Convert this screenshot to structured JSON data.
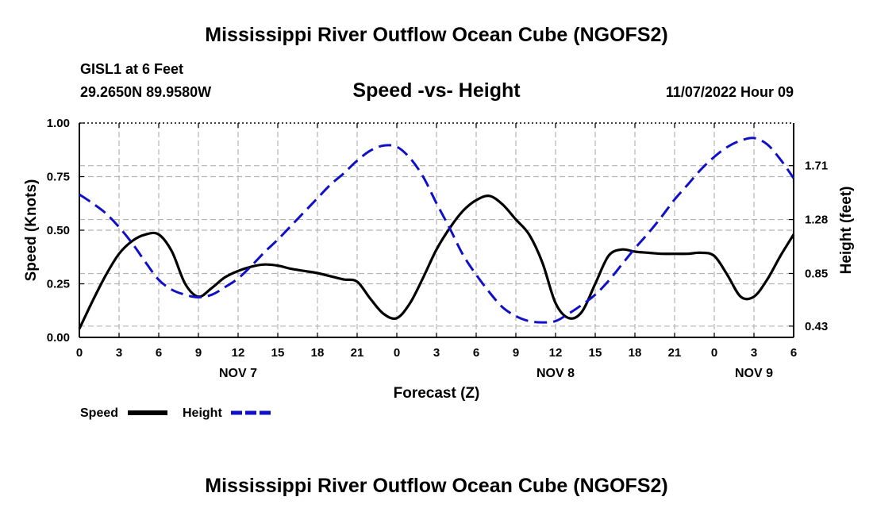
{
  "page": {
    "title": "Mississippi River Outflow Ocean Cube (NGOFS2)",
    "bottom_title": "Mississippi River Outflow Ocean Cube (NGOFS2)",
    "station": "GISL1 at 6 Feet",
    "coords": "29.2650N  89.9580W",
    "chart_title": "Speed -vs- Height",
    "datetime": "11/07/2022 Hour 09"
  },
  "chart_data": {
    "type": "line",
    "title": "Speed -vs- Height",
    "xlabel": "Forecast (Z)",
    "ylabel": "Speed (Knots)",
    "y2label": "Height (feet)",
    "x_unit": "hours since Nov 7 00Z",
    "xlim": [
      0,
      54
    ],
    "ylim": [
      0,
      1
    ],
    "y2lim": [
      0.34,
      2.05
    ],
    "x_tick_values": [
      0,
      3,
      6,
      9,
      12,
      15,
      18,
      21,
      24,
      27,
      30,
      33,
      36,
      39,
      42,
      45,
      48,
      51,
      54
    ],
    "x_tick_labels": [
      "0",
      "3",
      "6",
      "9",
      "12",
      "15",
      "18",
      "21",
      "0",
      "3",
      "6",
      "9",
      "12",
      "15",
      "18",
      "21",
      "0",
      "3",
      "6"
    ],
    "day_labels": [
      {
        "x": 12,
        "label": "NOV 7"
      },
      {
        "x": 36,
        "label": "NOV 8"
      },
      {
        "x": 51,
        "label": "NOV 9"
      }
    ],
    "y_ticks": [
      {
        "v": 0,
        "label": "0.00"
      },
      {
        "v": 0.25,
        "label": "0.25"
      },
      {
        "v": 0.5,
        "label": "0.50"
      },
      {
        "v": 0.75,
        "label": "0.75"
      },
      {
        "v": 1.0,
        "label": "1.00"
      }
    ],
    "y2_ticks": [
      {
        "v": 0.43,
        "label": "0.43"
      },
      {
        "v": 0.85,
        "label": "0.85"
      },
      {
        "v": 1.28,
        "label": "1.28"
      },
      {
        "v": 1.71,
        "label": "1.71"
      }
    ],
    "grid": true,
    "legend_position": "bottom-left",
    "series": [
      {
        "name": "Speed",
        "axis": "left",
        "color": "#000000",
        "style": "solid",
        "x": [
          0,
          1,
          2,
          3,
          4,
          5,
          6,
          7,
          8,
          9,
          10,
          11,
          12,
          13,
          14,
          15,
          16,
          17,
          18,
          19,
          20,
          21,
          22,
          23,
          24,
          25,
          26,
          27,
          28,
          29,
          30,
          31,
          32,
          33,
          34,
          35,
          36,
          37,
          38,
          39,
          40,
          41,
          42,
          43,
          44,
          45,
          46,
          47,
          48,
          49,
          50,
          51,
          52,
          53,
          54
        ],
        "values": [
          0.04,
          0.17,
          0.29,
          0.39,
          0.45,
          0.48,
          0.48,
          0.4,
          0.25,
          0.19,
          0.23,
          0.28,
          0.31,
          0.33,
          0.34,
          0.335,
          0.32,
          0.31,
          0.3,
          0.285,
          0.27,
          0.26,
          0.18,
          0.11,
          0.09,
          0.16,
          0.28,
          0.41,
          0.51,
          0.59,
          0.64,
          0.66,
          0.62,
          0.55,
          0.48,
          0.35,
          0.16,
          0.09,
          0.12,
          0.25,
          0.38,
          0.41,
          0.4,
          0.395,
          0.39,
          0.39,
          0.39,
          0.395,
          0.38,
          0.29,
          0.19,
          0.19,
          0.27,
          0.38,
          0.48
        ]
      },
      {
        "name": "Height",
        "axis": "right",
        "color": "#1010c8",
        "style": "dashed",
        "x": [
          0,
          1,
          2,
          3,
          4,
          5,
          6,
          7,
          8,
          9,
          10,
          11,
          12,
          13,
          14,
          15,
          16,
          17,
          18,
          19,
          20,
          21,
          22,
          23,
          24,
          25,
          26,
          27,
          28,
          29,
          30,
          31,
          32,
          33,
          34,
          35,
          36,
          37,
          38,
          39,
          40,
          41,
          42,
          43,
          44,
          45,
          46,
          47,
          48,
          49,
          50,
          51,
          52,
          53,
          54
        ],
        "values": [
          1.48,
          1.41,
          1.33,
          1.22,
          1.09,
          0.94,
          0.8,
          0.72,
          0.68,
          0.66,
          0.68,
          0.74,
          0.81,
          0.91,
          1.02,
          1.12,
          1.23,
          1.34,
          1.45,
          1.56,
          1.65,
          1.75,
          1.83,
          1.87,
          1.86,
          1.77,
          1.62,
          1.41,
          1.21,
          1.0,
          0.84,
          0.7,
          0.58,
          0.51,
          0.47,
          0.46,
          0.47,
          0.53,
          0.6,
          0.68,
          0.79,
          0.92,
          1.05,
          1.17,
          1.3,
          1.44,
          1.56,
          1.68,
          1.78,
          1.86,
          1.91,
          1.93,
          1.88,
          1.76,
          1.61
        ]
      }
    ]
  },
  "legend": {
    "speed_label": "Speed",
    "height_label": "Height"
  }
}
